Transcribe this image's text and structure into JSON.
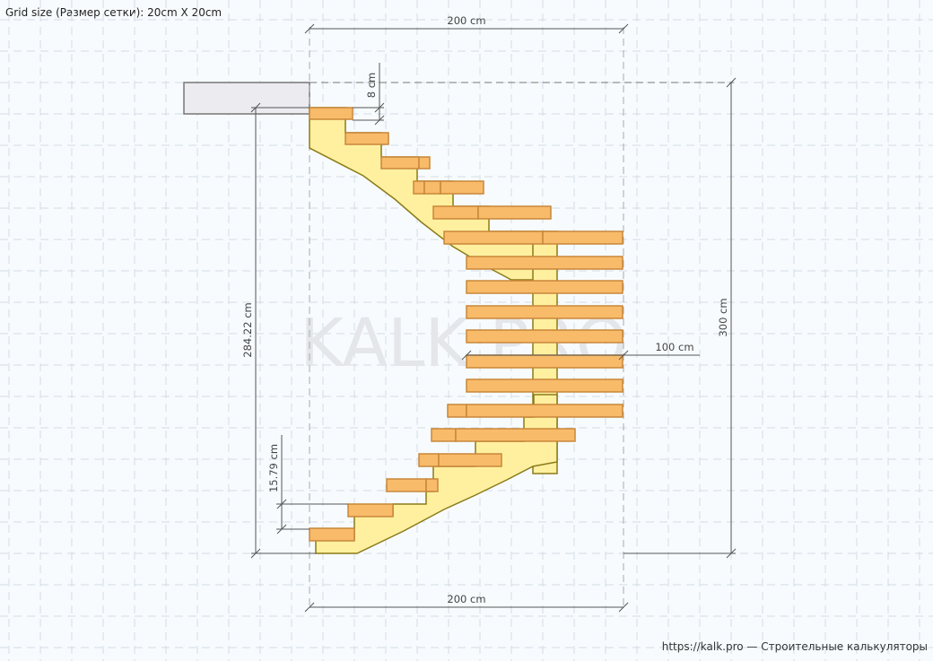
{
  "header": {
    "grid_size": "Grid size (Размер сетки): 20cm X 20cm"
  },
  "watermark": "KALK.PRO",
  "dimensions": {
    "top_width": "200 cm",
    "bottom_width": "200 cm",
    "total_height": "300 cm",
    "stair_height": "284.22 cm",
    "tread_thickness": "8 cm",
    "riser_height": "15.79 cm",
    "stringer_offset": "100 cm"
  },
  "footer": {
    "link": "https://kalk.pro",
    "separator": " — ",
    "tagline": "Строительные калькуляторы"
  },
  "colors": {
    "background": "#f7fbfe",
    "grid": "#d3dde4",
    "tread_fill": "#f8bb6a",
    "tread_stroke": "#c8873a",
    "stringer_fill": "#fff0a0",
    "stringer_stroke": "#8a7a18",
    "slab_fill": "#ecebf0",
    "dimension_line": "#555555",
    "watermark": "#e4e6ea"
  }
}
